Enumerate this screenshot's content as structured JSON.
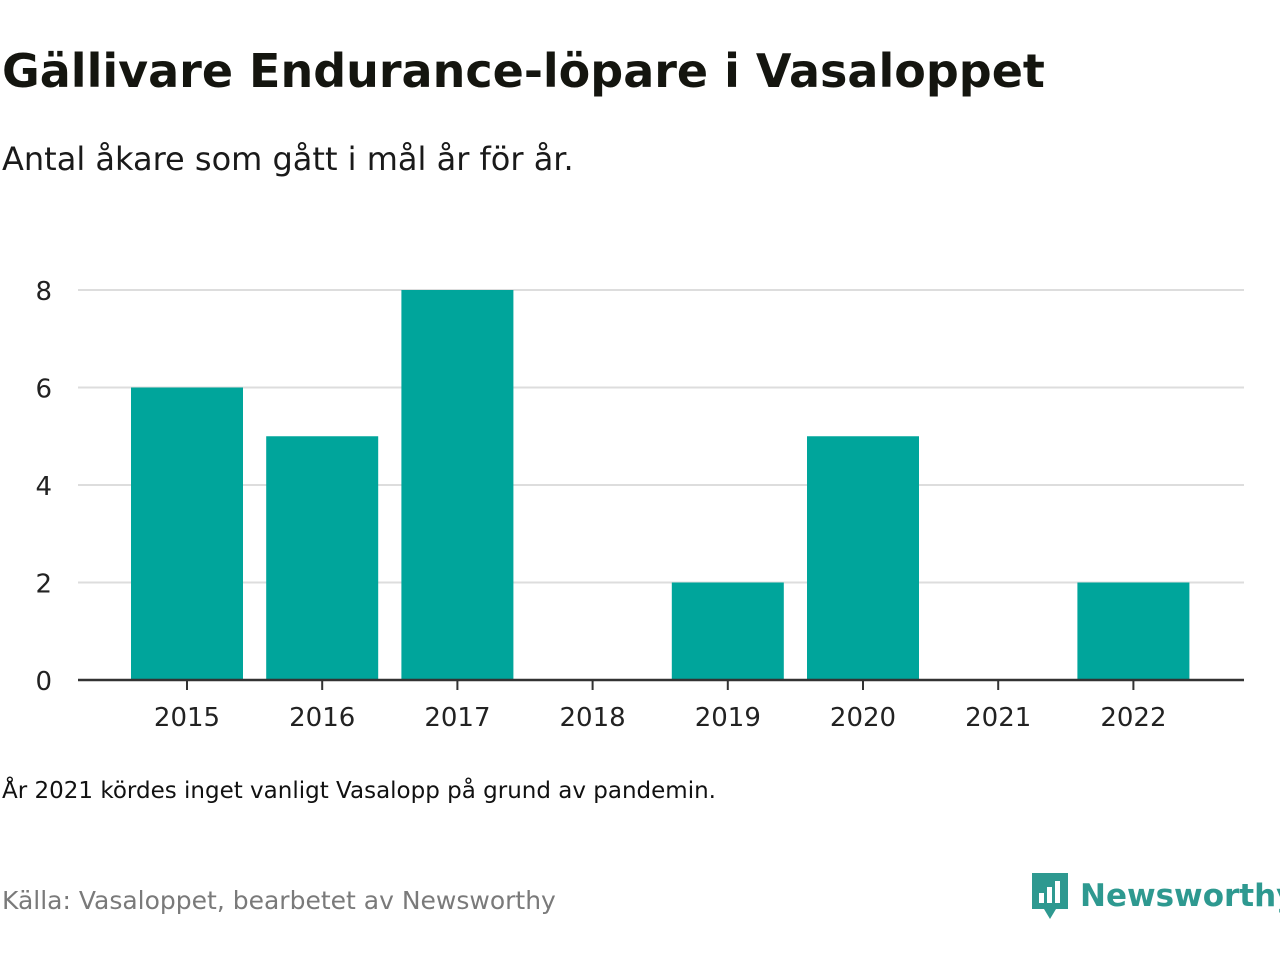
{
  "title": "Gällivare Endurance-löpare i Vasaloppet",
  "subtitle": "Antal åkare som gått i mål år för år.",
  "note": "År 2021 kördes inget vanligt Vasalopp på grund av pandemin.",
  "source": "Källa: Vasaloppet, bearbetet av Newsworthy",
  "logo": {
    "text": "Newsworthy",
    "icon": "newsworthy-chart-bubble-icon",
    "color": "#2e9990"
  },
  "chart_data": {
    "type": "bar",
    "categories": [
      "2015",
      "2016",
      "2017",
      "2018",
      "2019",
      "2020",
      "2021",
      "2022"
    ],
    "values": [
      6,
      5,
      8,
      0,
      2,
      5,
      0,
      2
    ],
    "ylim": [
      0,
      8
    ],
    "yticks": [
      0,
      2,
      4,
      6,
      8
    ],
    "grid": true,
    "bar_color": "#00a59b",
    "grid_color": "#dddddd",
    "axis_color": "#333333"
  }
}
